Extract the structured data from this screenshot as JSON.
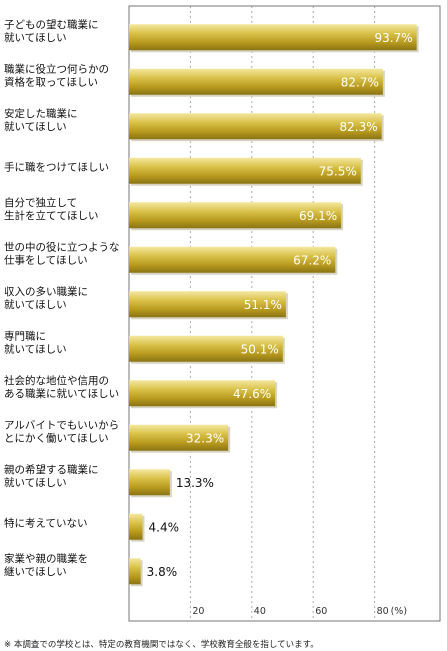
{
  "chart_data": {
    "type": "bar",
    "orientation": "horizontal",
    "categories": [
      [
        "子どもの望む職業に",
        "就いてほしい"
      ],
      [
        "職業に役立つ何らかの",
        "資格を取ってほしい"
      ],
      [
        "安定した職業に",
        "就いてほしい"
      ],
      [
        "手に職をつけてほしい"
      ],
      [
        "自分で独立して",
        "生計を立ててほしい"
      ],
      [
        "世の中の役に立つような",
        "仕事をしてほしい"
      ],
      [
        "収入の多い職業に",
        "就いてほしい"
      ],
      [
        "専門職に",
        "就いてほしい"
      ],
      [
        "社会的な地位や信用の",
        "ある職業に就いてほしい"
      ],
      [
        "アルバイトでもいいから",
        "とにかく働いてほしい"
      ],
      [
        "親の希望する職業に",
        "就いてほしい"
      ],
      [
        "特に考えていない"
      ],
      [
        "家業や親の職業を",
        "継いでほしい"
      ]
    ],
    "values": [
      93.7,
      82.7,
      82.3,
      75.5,
      69.1,
      67.2,
      51.1,
      50.1,
      47.6,
      32.3,
      13.3,
      4.4,
      3.8
    ],
    "value_labels": [
      "93.7%",
      "82.7%",
      "82.3%",
      "75.5%",
      "69.1%",
      "67.2%",
      "51.1%",
      "50.1%",
      "47.6%",
      "32.3%",
      "13.3%",
      "4.4%",
      "3.8%"
    ],
    "xlim": [
      0,
      100
    ],
    "ticks": [
      20,
      40,
      60,
      80
    ],
    "tick_labels": [
      "20",
      "40",
      "60",
      "80"
    ],
    "unit_label": "(%)",
    "grid": true,
    "bar_color": "#c9b23a"
  },
  "footnote": "※ 本調査での学校とは、特定の教育機関ではなく、学校教育全般を指しています。"
}
